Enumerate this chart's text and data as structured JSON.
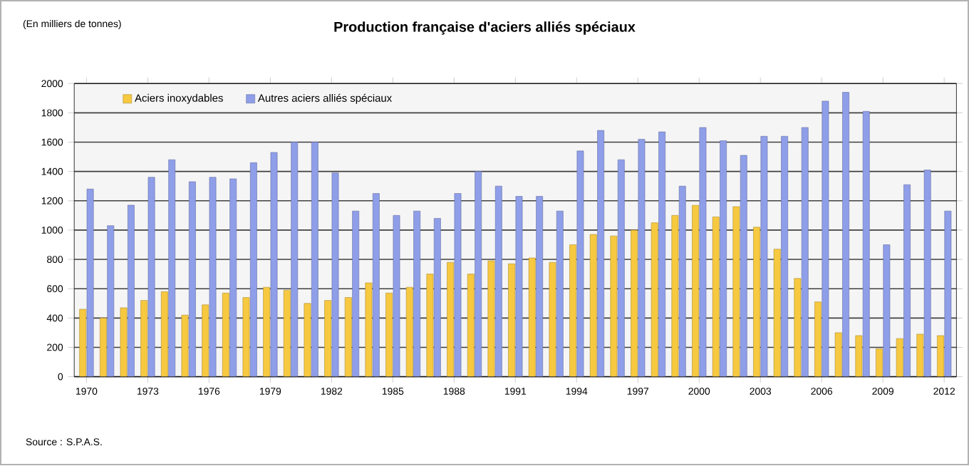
{
  "chart_data": {
    "type": "bar",
    "title": "Production française d'aciers alliés spéciaux",
    "subtitle": "(En milliers de tonnes)",
    "categories": [
      "1970",
      null,
      null,
      "1973",
      null,
      null,
      "1976",
      null,
      null,
      "1979",
      null,
      null,
      "1982",
      null,
      null,
      "1985",
      null,
      null,
      "1988",
      null,
      null,
      "1991",
      null,
      null,
      "1994",
      null,
      null,
      "1997",
      null,
      null,
      "2000",
      null,
      null,
      "2003",
      null,
      null,
      "2006",
      null,
      null,
      "2009",
      null,
      null,
      "2012"
    ],
    "series": [
      {
        "name": "Aciers inoxydables",
        "color": "#f7c940",
        "values": [
          460,
          400,
          470,
          520,
          580,
          420,
          490,
          570,
          540,
          610,
          590,
          500,
          520,
          540,
          640,
          570,
          610,
          700,
          780,
          700,
          790,
          770,
          810,
          780,
          900,
          970,
          960,
          1000,
          1050,
          1100,
          1170,
          1090,
          1160,
          1020,
          870,
          670,
          510,
          300,
          280,
          190,
          260,
          290,
          280
        ]
      },
      {
        "name": "Autres aciers alliés spéciaux",
        "color": "#8f9ee8",
        "values": [
          1280,
          1030,
          1170,
          1360,
          1480,
          1330,
          1360,
          1350,
          1460,
          1530,
          1600,
          1600,
          1390,
          1130,
          1250,
          1100,
          1130,
          1080,
          1250,
          1400,
          1300,
          1230,
          1230,
          1130,
          1540,
          1680,
          1480,
          1620,
          1670,
          1300,
          1700,
          1610,
          1510,
          1640,
          1640,
          1700,
          1880,
          1940,
          1810,
          900,
          1310,
          1410,
          1130
        ]
      }
    ],
    "ylim": [
      0,
      2000
    ],
    "yticks": [
      0,
      200,
      400,
      600,
      800,
      1000,
      1200,
      1400,
      1600,
      1800,
      2000
    ],
    "grid": "y",
    "legend": "top left",
    "annotations": [
      "Source : S.P.A.S."
    ]
  }
}
